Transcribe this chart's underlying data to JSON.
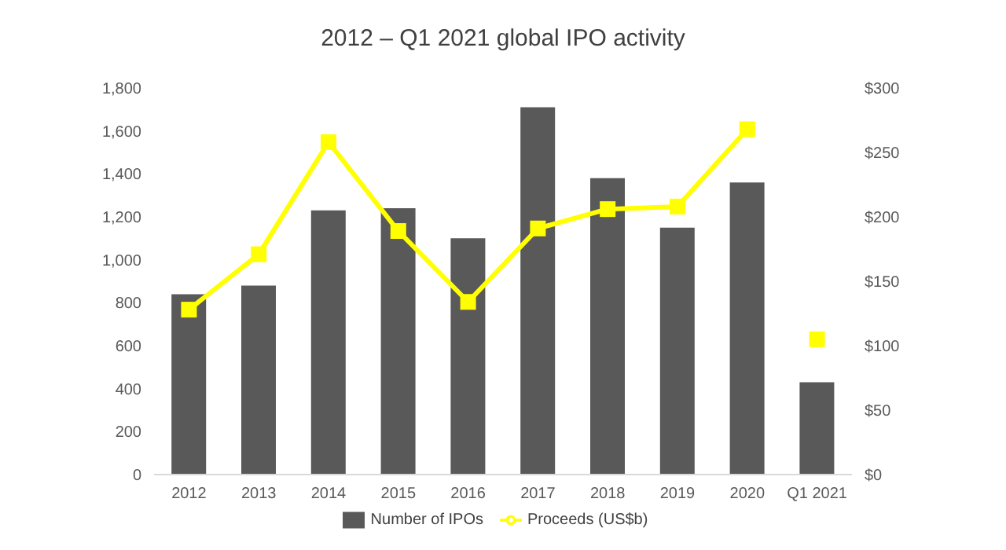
{
  "chart_data": {
    "type": "bar",
    "title": "2012 – Q1 2021 global IPO activity",
    "categories": [
      "2012",
      "2013",
      "2014",
      "2015",
      "2016",
      "2017",
      "2018",
      "2019",
      "2020",
      "Q1 2021"
    ],
    "series": [
      {
        "name": "Number of IPOs",
        "color": "#595959",
        "values": [
          840,
          880,
          1230,
          1240,
          1100,
          1710,
          1380,
          1150,
          1360,
          430
        ]
      },
      {
        "name": "Proceeds (US$b)",
        "type": "line",
        "axis": "y2",
        "color": "#ffff00",
        "marker": "square",
        "values": [
          128,
          171,
          258,
          189,
          134,
          191,
          206,
          208,
          268,
          null
        ]
      },
      {
        "type": "scatter",
        "axis": "y2",
        "color": "#ffff00",
        "marker": "square",
        "values": [
          null,
          null,
          null,
          null,
          null,
          null,
          null,
          null,
          null,
          105
        ]
      }
    ],
    "ylim": [
      0,
      1800
    ],
    "yticks": [
      {
        "value": 0,
        "label": "0"
      },
      {
        "value": 200,
        "label": "200"
      },
      {
        "value": 400,
        "label": "400"
      },
      {
        "value": 600,
        "label": "600"
      },
      {
        "value": 800,
        "label": "800"
      },
      {
        "value": 1000,
        "label": "1,000"
      },
      {
        "value": 1200,
        "label": "1,200"
      },
      {
        "value": 1400,
        "label": "1,400"
      },
      {
        "value": 1600,
        "label": "1,600"
      },
      {
        "value": 1800,
        "label": "1,800"
      }
    ],
    "y2lim": [
      0,
      300
    ],
    "y2ticks": [
      {
        "value": 0,
        "label": "$0"
      },
      {
        "value": 50,
        "label": "$50"
      },
      {
        "value": 100,
        "label": "$100"
      },
      {
        "value": 150,
        "label": "$150"
      },
      {
        "value": 200,
        "label": "$200"
      },
      {
        "value": 250,
        "label": "$250"
      },
      {
        "value": 300,
        "label": "$300"
      }
    ],
    "grid": false,
    "legend": "bottom"
  }
}
